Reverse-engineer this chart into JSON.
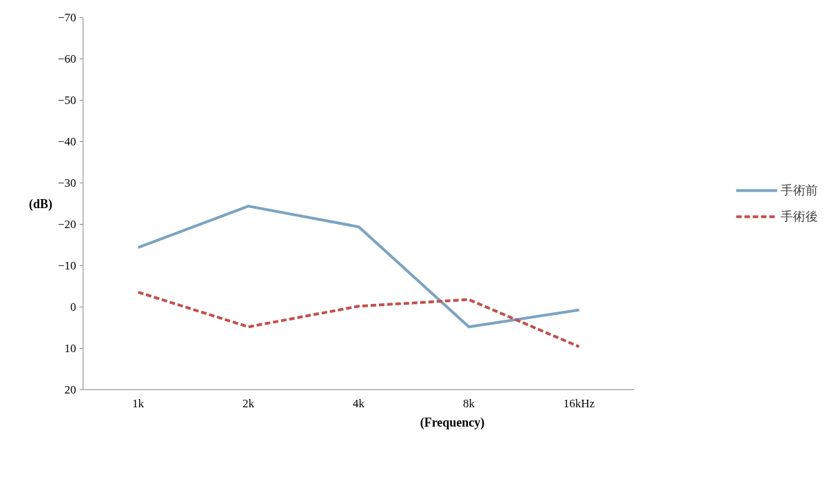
{
  "chart_data": {
    "type": "line",
    "xlabel": "(Frequency)",
    "ylabel": "(dB)",
    "categories": [
      "1k",
      "2k",
      "4k",
      "8k",
      "16kHz"
    ],
    "series": [
      {
        "name": "手術前",
        "color": "#7ba3c0",
        "values": [
          -14.4,
          -24.4,
          -19.4,
          4.8,
          0.7
        ]
      },
      {
        "name": "手術後",
        "color": "#c0504d",
        "values": [
          -3.6,
          4.8,
          -0.2,
          -1.8,
          9.6
        ],
        "line_style": "dashed"
      }
    ],
    "ylim": [
      20,
      -70
    ],
    "yticks": [
      -70,
      -60,
      -50,
      -40,
      -30,
      -20,
      -10,
      0,
      10,
      20
    ],
    "grid": false,
    "legend": "right",
    "marker": "none",
    "line_style": "solid"
  }
}
